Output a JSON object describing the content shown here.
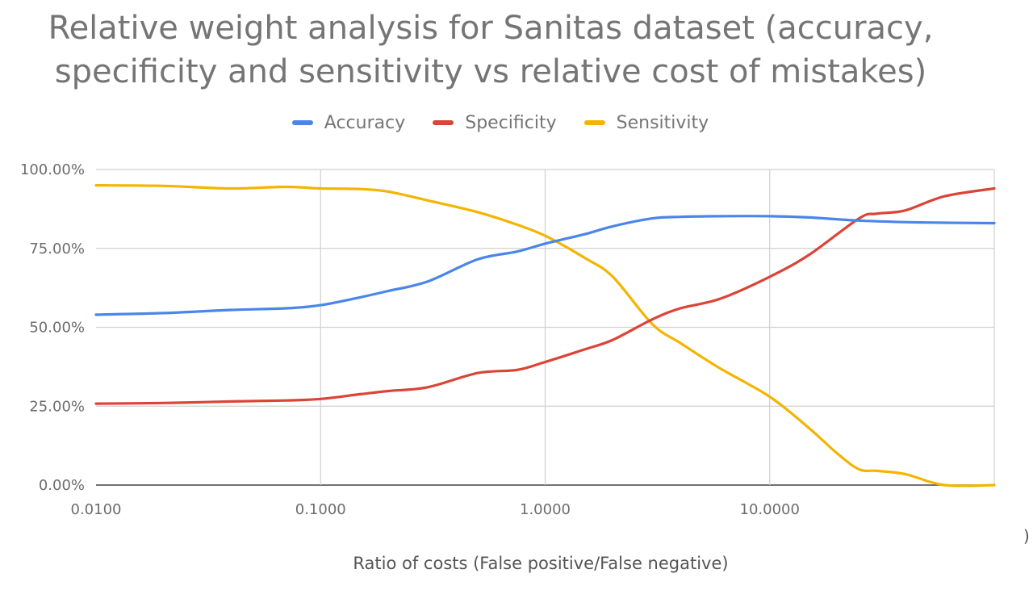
{
  "chart_data": {
    "type": "line",
    "title_lines": [
      "Relative weight analysis for Sanitas dataset (accuracy,",
      "specificity and sensitivity vs relative cost of mistakes)"
    ],
    "xlabel": "Ratio of costs (False positive/False negative)",
    "ylabel": "",
    "x_scale": "log",
    "xlim": [
      0.01,
      100
    ],
    "ylim": [
      0,
      100
    ],
    "x_tick_labels": [
      "0.0100",
      "0.1000",
      "1.0000",
      "10.0000"
    ],
    "x_tick_values": [
      0.01,
      0.1,
      1,
      10
    ],
    "y_tick_labels": [
      "0.00%",
      "25.00%",
      "50.00%",
      "75.00%",
      "100.00%"
    ],
    "y_tick_values": [
      0,
      25,
      50,
      75,
      100
    ],
    "grid": true,
    "legend_position": "top",
    "stray_text": ")",
    "series": [
      {
        "name": "Accuracy",
        "color": "#4a86e8",
        "x": [
          0.01,
          0.02,
          0.04,
          0.07,
          0.1,
          0.15,
          0.2,
          0.3,
          0.5,
          0.75,
          1.0,
          1.5,
          2,
          3,
          4,
          6,
          10,
          15,
          25,
          50,
          100
        ],
        "y": [
          54,
          54.5,
          55.5,
          56,
          57,
          59.5,
          61.5,
          64.5,
          71.5,
          74,
          76.5,
          79.5,
          82,
          84.5,
          85,
          85.2,
          85.2,
          84.8,
          83.8,
          83.2,
          83
        ]
      },
      {
        "name": "Specificity",
        "color": "#db4437",
        "x": [
          0.01,
          0.02,
          0.04,
          0.07,
          0.1,
          0.15,
          0.2,
          0.3,
          0.5,
          0.75,
          1.0,
          1.5,
          2,
          3,
          4,
          6,
          10,
          15,
          25,
          30,
          40,
          60,
          100
        ],
        "y": [
          25.8,
          26,
          26.5,
          26.8,
          27.3,
          28.8,
          29.8,
          31,
          35.5,
          36.5,
          39,
          43,
          46,
          52.5,
          56,
          59,
          66,
          73,
          84.5,
          86,
          87,
          91.5,
          94
        ]
      },
      {
        "name": "Sensitivity",
        "color": "#f4b400",
        "x": [
          0.01,
          0.02,
          0.04,
          0.07,
          0.1,
          0.15,
          0.2,
          0.3,
          0.5,
          0.75,
          1.0,
          1.5,
          2,
          3,
          4,
          6,
          10,
          15,
          20,
          25,
          30,
          40,
          60,
          100
        ],
        "y": [
          95,
          94.8,
          94,
          94.5,
          94,
          93.8,
          93,
          90.2,
          86.5,
          82.5,
          79,
          72,
          66,
          51,
          45,
          37,
          28,
          18,
          10,
          5,
          4.5,
          3.5,
          0,
          0
        ]
      }
    ]
  }
}
